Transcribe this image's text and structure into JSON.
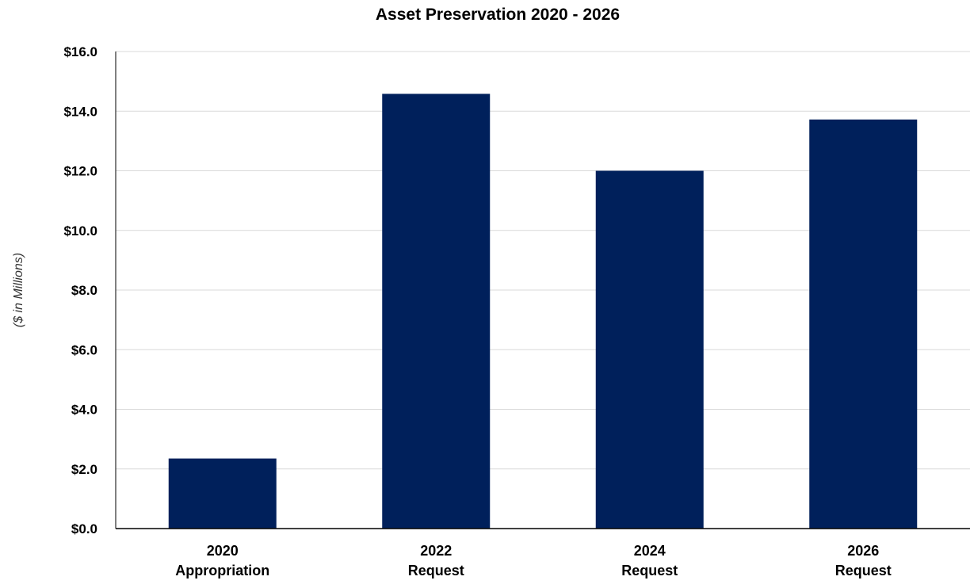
{
  "chart_data": {
    "type": "bar",
    "title": "Asset Preservation 2020 - 2026",
    "xlabel": "",
    "ylabel": "($ in Millions)",
    "categories": [
      [
        "2020",
        "Appropriation"
      ],
      [
        "2022",
        "Request"
      ],
      [
        "2024",
        "Request"
      ],
      [
        "2026",
        "Request"
      ]
    ],
    "values": [
      2.35,
      14.58,
      12.0,
      13.72
    ],
    "ylim": [
      0,
      16
    ],
    "yticks": [
      0,
      2,
      4,
      6,
      8,
      10,
      12,
      14,
      16
    ],
    "ytick_labels": [
      "$0.0",
      "$2.0",
      "$4.0",
      "$6.0",
      "$8.0",
      "$10.0",
      "$12.0",
      "$14.0",
      "$16.0"
    ],
    "bar_color": "#00205b",
    "grid": true,
    "legend": "none"
  }
}
